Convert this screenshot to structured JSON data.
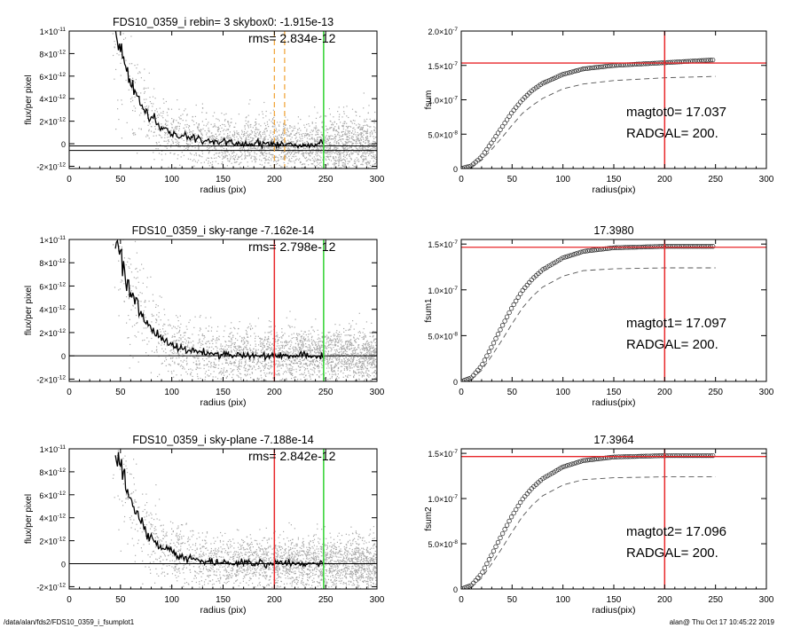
{
  "footer": {
    "path": "/data/alan/fds2/FDS10_0359_i_fsumplot1",
    "stamp": "alan@  Thu Oct 17 10:45:22 2019"
  },
  "colors": {
    "scatter": "#a8a8a8",
    "profile": "#000000",
    "red": "#e8272a",
    "green": "#2fd12f",
    "orange": "#f0a030",
    "dash": "#555555"
  },
  "chart_data": [
    {
      "type": "scatter",
      "panel": "left-top",
      "title": "FDS10_0359_i rebin= 3    skybox0: -1.915e-13",
      "annotation": "rms= 2.834e-12",
      "xlabel": "radius (pix)",
      "ylabel": "flux/per pixel",
      "xlim": [
        0,
        300
      ],
      "ylim": [
        -2.2e-12,
        1e-11
      ],
      "xticks": [
        "0",
        "50",
        "100",
        "150",
        "200",
        "250",
        "300"
      ],
      "yticks": [
        {
          "m": "1×10",
          "e": "-11",
          "v": 1e-11
        },
        {
          "m": "8×10",
          "e": "-12",
          "v": 8e-12
        },
        {
          "m": "6×10",
          "e": "-12",
          "v": 6e-12
        },
        {
          "m": "4×10",
          "e": "-12",
          "v": 4e-12
        },
        {
          "m": "2×10",
          "e": "-12",
          "v": 2e-12
        },
        {
          "m": "0",
          "e": "",
          "v": 0
        },
        {
          "m": "-2×10",
          "e": "-12",
          "v": -2e-12
        }
      ],
      "profile": {
        "x": [
          45,
          50,
          55,
          60,
          65,
          70,
          75,
          80,
          90,
          100,
          110,
          120,
          130,
          140,
          150,
          170,
          200,
          225,
          248
        ],
        "y": [
          1.02e-11,
          8.6e-12,
          6.9e-12,
          5.5e-12,
          4.4e-12,
          3.5e-12,
          2.8e-12,
          2.2e-12,
          1.5e-12,
          9.5e-13,
          6.5e-13,
          4.5e-13,
          3e-13,
          1.8e-13,
          1e-13,
          2e-14,
          -6e-14,
          -8e-14,
          -9e-14
        ]
      },
      "hlines": [
        {
          "y": -1.915e-13,
          "color": "black"
        },
        {
          "y": -6e-13,
          "color": "black"
        }
      ],
      "vlines": [
        {
          "x": 200,
          "color": "orange",
          "dashed": true
        },
        {
          "x": 210,
          "color": "orange",
          "dashed": true
        },
        {
          "x": 248,
          "color": "green"
        }
      ]
    },
    {
      "type": "line",
      "panel": "right-top",
      "title": "",
      "xlabel": "radius(pix)",
      "ylabel": "fsum",
      "xlim": [
        0,
        300
      ],
      "ylim": [
        0,
        2e-07
      ],
      "xticks": [
        "0",
        "50",
        "100",
        "150",
        "200",
        "250",
        "300"
      ],
      "yticks": [
        {
          "m": "2.0×10",
          "e": "-7",
          "v": 2e-07
        },
        {
          "m": "1.5×10",
          "e": "-7",
          "v": 1.5e-07
        },
        {
          "m": "1.0×10",
          "e": "-7",
          "v": 1e-07
        },
        {
          "m": "5.0×10",
          "e": "-8",
          "v": 5e-08
        },
        {
          "m": "0",
          "e": "",
          "v": 0
        }
      ],
      "curve": {
        "x": [
          0,
          10,
          20,
          30,
          40,
          50,
          60,
          70,
          80,
          100,
          120,
          150,
          200,
          248
        ],
        "y": [
          0,
          4e-09,
          1.7e-08,
          3.8e-08,
          6e-08,
          8.2e-08,
          1e-07,
          1.14e-07,
          1.24e-07,
          1.37e-07,
          1.45e-07,
          1.5e-07,
          1.54e-07,
          1.58e-07
        ]
      },
      "dashed_curve": {
        "x": [
          10,
          20,
          30,
          40,
          50,
          60,
          70,
          80,
          100,
          120,
          150,
          200,
          250
        ],
        "y": [
          2e-09,
          1.2e-08,
          2.8e-08,
          4.5e-08,
          6.3e-08,
          8e-08,
          9.2e-08,
          1.02e-07,
          1.16e-07,
          1.23e-07,
          1.28e-07,
          1.32e-07,
          1.34e-07
        ]
      },
      "hline": 1.535e-07,
      "vline": 200,
      "labels": [
        {
          "text": "magtot0=  17.037"
        },
        {
          "text": "RADGAL=    200."
        }
      ]
    },
    {
      "type": "scatter",
      "panel": "left-middle",
      "title": "FDS10_0359_i sky-range -7.162e-14",
      "annotation": "rms= 2.798e-12",
      "xlabel": "radius (pix)",
      "ylabel": "flux/per pixel",
      "xlim": [
        0,
        300
      ],
      "ylim": [
        -2.2e-12,
        1e-11
      ],
      "xticks": [
        "0",
        "50",
        "100",
        "150",
        "200",
        "250",
        "300"
      ],
      "yticks": [
        {
          "m": "1×10",
          "e": "-11",
          "v": 1e-11
        },
        {
          "m": "8×10",
          "e": "-12",
          "v": 8e-12
        },
        {
          "m": "6×10",
          "e": "-12",
          "v": 6e-12
        },
        {
          "m": "4×10",
          "e": "-12",
          "v": 4e-12
        },
        {
          "m": "2×10",
          "e": "-12",
          "v": 2e-12
        },
        {
          "m": "0",
          "e": "",
          "v": 0
        },
        {
          "m": "-2×10",
          "e": "-12",
          "v": -2e-12
        }
      ],
      "profile": {
        "x": [
          45,
          50,
          55,
          60,
          65,
          70,
          75,
          80,
          90,
          100,
          110,
          120,
          130,
          140,
          150,
          170,
          200,
          225,
          248
        ],
        "y": [
          1.02e-11,
          8.6e-12,
          6.9e-12,
          5.5e-12,
          4.4e-12,
          3.5e-12,
          2.8e-12,
          2.2e-12,
          1.5e-12,
          9.5e-13,
          6.5e-13,
          4.5e-13,
          3e-13,
          1.8e-13,
          1e-13,
          4e-14,
          0,
          0,
          0
        ]
      },
      "hlines": [
        {
          "y": 0,
          "color": "black"
        }
      ],
      "vlines": [
        {
          "x": 200,
          "color": "red"
        },
        {
          "x": 248,
          "color": "green"
        }
      ]
    },
    {
      "type": "line",
      "panel": "right-middle",
      "title": "17.3980",
      "xlabel": "radius(pix)",
      "ylabel": "fsum1",
      "xlim": [
        0,
        300
      ],
      "ylim": [
        0,
        1.55e-07
      ],
      "xticks": [
        "0",
        "50",
        "100",
        "150",
        "200",
        "250",
        "300"
      ],
      "yticks": [
        {
          "m": "1.5×10",
          "e": "-7",
          "v": 1.5e-07
        },
        {
          "m": "1.0×10",
          "e": "-7",
          "v": 1e-07
        },
        {
          "m": "5.0×10",
          "e": "-8",
          "v": 5e-08
        },
        {
          "m": "0",
          "e": "",
          "v": 0
        }
      ],
      "curve": {
        "x": [
          0,
          10,
          20,
          30,
          40,
          50,
          60,
          70,
          80,
          100,
          120,
          150,
          200,
          248
        ],
        "y": [
          0,
          4e-09,
          1.7e-08,
          3.8e-08,
          6e-08,
          8.1e-08,
          9.9e-08,
          1.12e-07,
          1.22e-07,
          1.35e-07,
          1.42e-07,
          1.46e-07,
          1.475e-07,
          1.475e-07
        ]
      },
      "dashed_curve": {
        "x": [
          10,
          20,
          30,
          40,
          50,
          60,
          70,
          80,
          100,
          120,
          150,
          200,
          250
        ],
        "y": [
          2e-09,
          1.2e-08,
          2.8e-08,
          4.5e-08,
          6.3e-08,
          8e-08,
          9.3e-08,
          1.03e-07,
          1.15e-07,
          1.21e-07,
          1.23e-07,
          1.24e-07,
          1.24e-07
        ]
      },
      "hline": 1.465e-07,
      "vline": 200,
      "labels": [
        {
          "text": "magtot1=  17.097"
        },
        {
          "text": "RADGAL=    200."
        }
      ]
    },
    {
      "type": "scatter",
      "panel": "left-bottom",
      "title": "FDS10_0359_i sky-plane -7.188e-14",
      "annotation": "rms= 2.842e-12",
      "xlabel": "radius (pix)",
      "ylabel": "flux/per pixel",
      "xlim": [
        0,
        300
      ],
      "ylim": [
        -2.2e-12,
        1e-11
      ],
      "xticks": [
        "0",
        "50",
        "100",
        "150",
        "200",
        "250",
        "300"
      ],
      "yticks": [
        {
          "m": "1×10",
          "e": "-11",
          "v": 1e-11
        },
        {
          "m": "8×10",
          "e": "-12",
          "v": 8e-12
        },
        {
          "m": "6×10",
          "e": "-12",
          "v": 6e-12
        },
        {
          "m": "4×10",
          "e": "-12",
          "v": 4e-12
        },
        {
          "m": "2×10",
          "e": "-12",
          "v": 2e-12
        },
        {
          "m": "0",
          "e": "",
          "v": 0
        },
        {
          "m": "-2×10",
          "e": "-12",
          "v": -2e-12
        }
      ],
      "profile": {
        "x": [
          45,
          50,
          55,
          60,
          65,
          70,
          75,
          80,
          90,
          100,
          110,
          120,
          130,
          140,
          150,
          170,
          200,
          225,
          248
        ],
        "y": [
          1.02e-11,
          8.6e-12,
          6.9e-12,
          5.5e-12,
          4.4e-12,
          3.5e-12,
          2.8e-12,
          2.2e-12,
          1.5e-12,
          9.5e-13,
          6.5e-13,
          4.5e-13,
          3e-13,
          1.8e-13,
          1e-13,
          4e-14,
          0,
          0,
          0
        ]
      },
      "hlines": [
        {
          "y": 0,
          "color": "black"
        }
      ],
      "vlines": [
        {
          "x": 200,
          "color": "red"
        },
        {
          "x": 248,
          "color": "green"
        }
      ]
    },
    {
      "type": "line",
      "panel": "right-bottom",
      "title": "17.3964",
      "xlabel": "radius(pix)",
      "ylabel": "fsum2",
      "xlim": [
        0,
        300
      ],
      "ylim": [
        0,
        1.55e-07
      ],
      "xticks": [
        "0",
        "50",
        "100",
        "150",
        "200",
        "250",
        "300"
      ],
      "yticks": [
        {
          "m": "1.5×10",
          "e": "-7",
          "v": 1.5e-07
        },
        {
          "m": "1.0×10",
          "e": "-7",
          "v": 1e-07
        },
        {
          "m": "5.0×10",
          "e": "-8",
          "v": 5e-08
        },
        {
          "m": "0",
          "e": "",
          "v": 0
        }
      ],
      "curve": {
        "x": [
          0,
          10,
          20,
          30,
          40,
          50,
          60,
          70,
          80,
          100,
          120,
          150,
          200,
          248
        ],
        "y": [
          0,
          4e-09,
          1.7e-08,
          3.8e-08,
          6e-08,
          8.1e-08,
          9.9e-08,
          1.12e-07,
          1.22e-07,
          1.35e-07,
          1.42e-07,
          1.46e-07,
          1.475e-07,
          1.475e-07
        ]
      },
      "dashed_curve": {
        "x": [
          10,
          20,
          30,
          40,
          50,
          60,
          70,
          80,
          100,
          120,
          150,
          200,
          250
        ],
        "y": [
          2e-09,
          1.2e-08,
          2.8e-08,
          4.5e-08,
          6.3e-08,
          8e-08,
          9.3e-08,
          1.03e-07,
          1.15e-07,
          1.21e-07,
          1.23e-07,
          1.24e-07,
          1.24e-07
        ]
      },
      "hline": 1.465e-07,
      "vline": 200,
      "labels": [
        {
          "text": "magtot2=  17.096"
        },
        {
          "text": "RADGAL=    200."
        }
      ]
    }
  ]
}
